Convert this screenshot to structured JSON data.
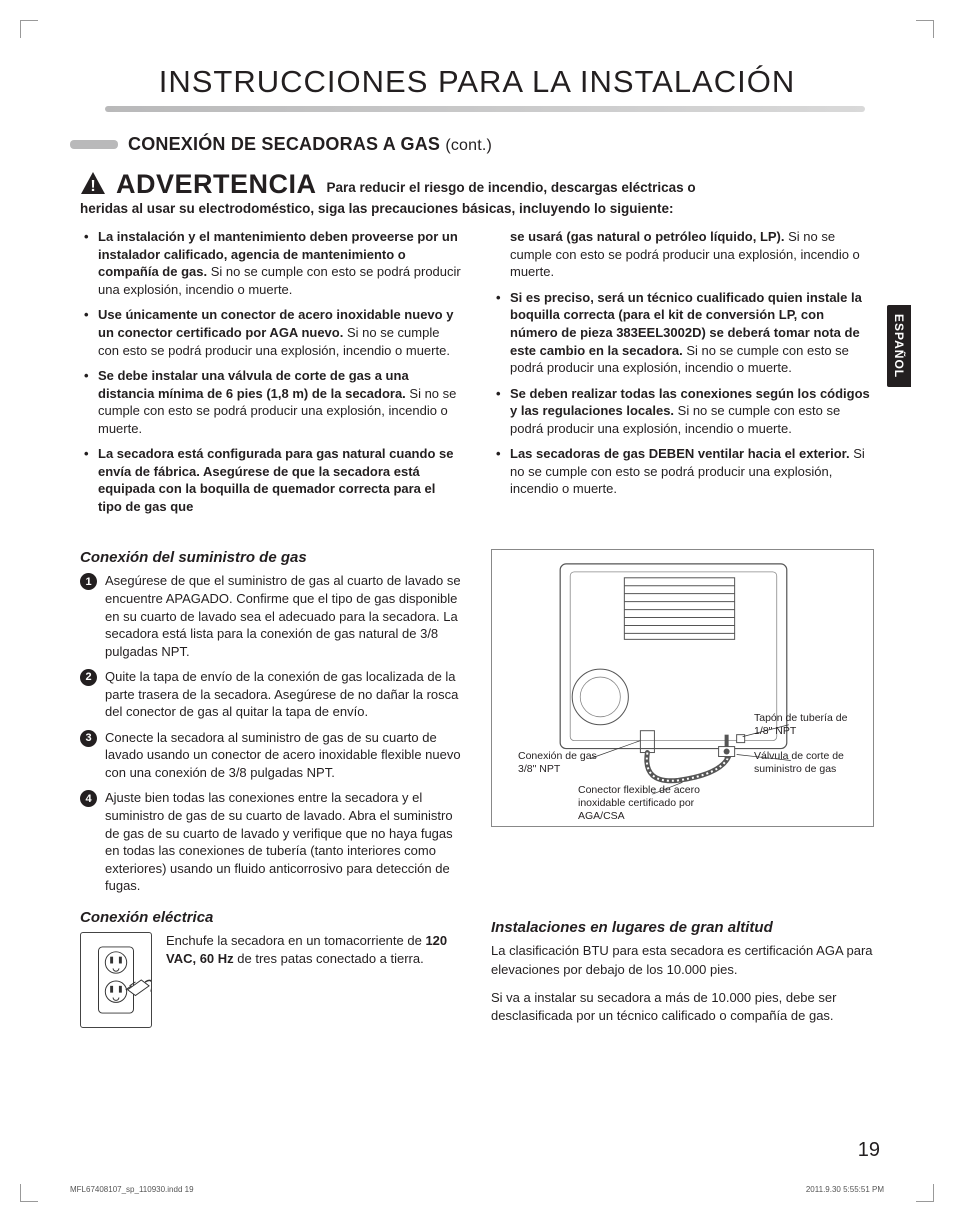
{
  "page": {
    "title": "INSTRUCCIONES PARA LA INSTALACIÓN",
    "section_title": "CONEXIÓN DE SECADORAS A GAS",
    "section_cont": "(cont.)",
    "side_tab": "ESPAÑOL",
    "page_number": "19",
    "footer_left": "MFL67408107_sp_110930.indd   19",
    "footer_right": "2011.9.30   5:55:51 PM"
  },
  "colors": {
    "text": "#231f20",
    "accent_bar": "#b9b9ba",
    "tab_bg": "#231f20",
    "tab_text": "#ffffff",
    "diagram_border": "#888888"
  },
  "warning": {
    "word": "ADVERTENCIA",
    "lead_inline": "Para reducir el riesgo de incendio, descargas eléctricas o",
    "lead_line2": "heridas al usar su electrodoméstico, siga las precauciones básicas, incluyendo lo siguiente:",
    "left": [
      {
        "bold": "La instalación y el mantenimiento deben proveerse por un instalador calificado, agencia de mantenimiento o compañía de gas.",
        "rest": " Si no se cumple con esto se podrá producir una explosión, incendio o muerte."
      },
      {
        "bold": "Use únicamente un conector de acero inoxidable nuevo y un conector certificado por AGA nuevo.",
        "rest": " Si no se cumple con esto se podrá producir una explosión, incendio o muerte."
      },
      {
        "bold": "Se debe instalar una válvula de corte de gas a una distancia mínima de 6 pies (1,8 m) de la secadora.",
        "rest": " Si no se cumple con esto se podrá producir una explosión, incendio o muerte."
      },
      {
        "bold": "La secadora está configurada para gas natural cuando se envía de fábrica. Asegúrese de que la secadora está equipada con la boquilla de quemador correcta para el tipo de gas que",
        "rest": ""
      }
    ],
    "right": [
      {
        "bold": "se usará (gas natural o petróleo líquido, LP).",
        "rest": " Si no se cumple con esto se podrá producir una explosión, incendio o muerte."
      },
      {
        "bold": "Si es preciso, será un técnico cualificado quien instale la boquilla correcta (para el kit de conversión LP, con número de pieza 383EEL3002D) se deberá tomar nota de este cambio en la secadora.",
        "rest": " Si no se cumple con esto se podrá producir una explosión, incendio o muerte."
      },
      {
        "bold": "Se deben realizar todas las conexiones según los códigos y las regulaciones locales.",
        "rest": " Si no se cumple con esto se podrá producir una explosión, incendio o muerte."
      },
      {
        "bold": "Las secadoras de gas DEBEN ventilar hacia el exterior.",
        "rest": " Si no se cumple con esto se podrá producir una explosión, incendio o muerte."
      }
    ]
  },
  "gas": {
    "title": "Conexión del suministro de gas",
    "steps": [
      "Asegúrese de que el suministro de gas al cuarto de lavado se encuentre APAGADO. Confirme que el tipo de gas disponible en su cuarto de lavado sea el adecuado para la secadora. La secadora está lista para la conexión de gas natural de 3/8 pulgadas NPT.",
      "Quite la tapa de envío de la conexión de gas localizada de la parte trasera de la secadora. Asegúrese de no dañar la rosca del conector de gas al quitar la tapa de envío.",
      "Conecte la secadora al suministro de gas de su cuarto de lavado usando un conector de acero inoxidable flexible nuevo con una conexión de 3/8 pulgadas NPT.",
      "Ajuste bien todas las conexiones entre la secadora y el suministro de gas de su cuarto de lavado. Abra el suministro de gas de su cuarto de lavado y verifique que no haya fugas en todas las conexiones de tubería (tanto interiores como exteriores) usando un fluido anticorrosivo para detección de fugas."
    ]
  },
  "electric": {
    "title": "Conexión eléctrica",
    "text_pre": "Enchufe la secadora en un tomacorriente de ",
    "text_bold": "120 VAC, 60 Hz",
    "text_post": " de tres patas conectado a tierra."
  },
  "diagram": {
    "label_conn": "Conexión de gas 3/8\" NPT",
    "label_plug": "Tapón de tubería de 1/8\" NPT",
    "label_valve": "Válvula de corte de suministro de gas",
    "label_flex": "Conector flexible de acero inoxidable certificado por AGA/CSA"
  },
  "altitude": {
    "title": "Instalaciones en lugares de gran altitud",
    "p1": "La clasificación BTU para esta secadora es certificación AGA para elevaciones por debajo de los 10.000 pies.",
    "p2": "Si va a instalar su secadora a más de 10.000 pies, debe ser desclasificada por un técnico calificado o compañía de gas."
  }
}
